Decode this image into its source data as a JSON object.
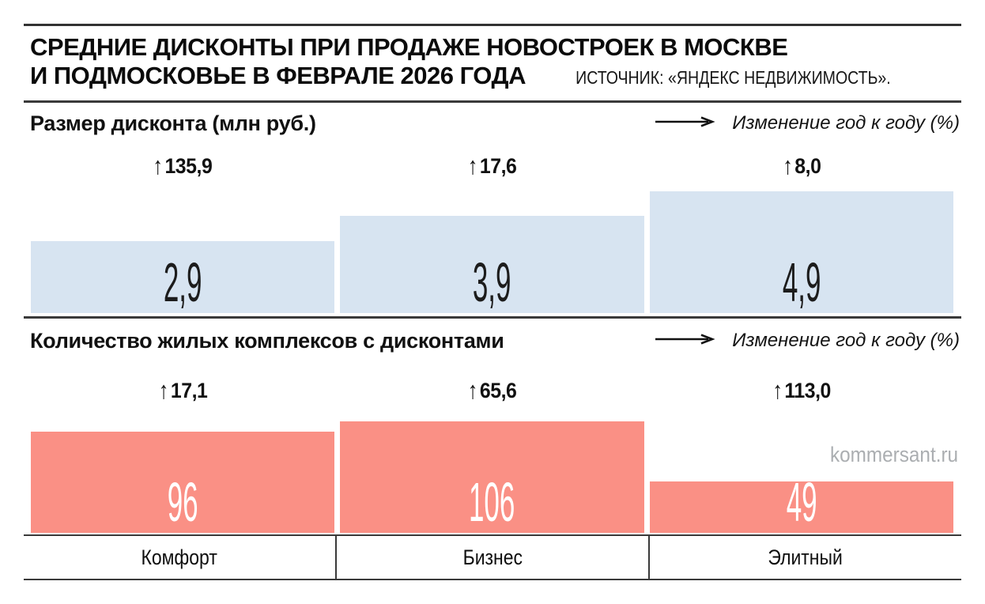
{
  "header": {
    "title_line1": "СРЕДНИЕ ДИСКОНТЫ ПРИ ПРОДАЖЕ НОВОСТРОЕК В МОСКВЕ",
    "title_line2": "И ПОДМОСКОВЬЕ В ФЕВРАЛЕ 2026 ГОДА",
    "source": "ИСТОЧНИК: «ЯНДЕКС НЕДВИЖИМОСТЬ»."
  },
  "icons": {
    "up_arrow": "↑"
  },
  "watermark": "kommersant.ru",
  "chart_data": [
    {
      "type": "bar",
      "title": "Размер дисконта (млн руб.)",
      "legend": "Изменение год к году (%)",
      "legend_position": "top-right",
      "grid": false,
      "categories": [
        "Комфорт",
        "Бизнес",
        "Элитный"
      ],
      "values": [
        2.9,
        3.9,
        4.9
      ],
      "value_labels": [
        "2,9",
        "3,9",
        "4,9"
      ],
      "yoy_change_labels": [
        "135,9",
        "17,6",
        "8,0"
      ],
      "yoy_change_direction": [
        "up",
        "up",
        "up"
      ],
      "bar_color": "#d7e4f1",
      "value_label_color": "#1c1c1c"
    },
    {
      "type": "bar",
      "title": "Количество жилых комплексов с дисконтами",
      "legend": "Изменение год к году (%)",
      "legend_position": "top-right",
      "grid": false,
      "categories": [
        "Комфорт",
        "Бизнес",
        "Элитный"
      ],
      "values": [
        96,
        106,
        49
      ],
      "value_labels": [
        "96",
        "106",
        "49"
      ],
      "yoy_change_labels": [
        "17,1",
        "65,6",
        "113,0"
      ],
      "yoy_change_direction": [
        "up",
        "up",
        "up"
      ],
      "bar_color": "#fa9085",
      "value_label_color": "#ffffff"
    }
  ]
}
